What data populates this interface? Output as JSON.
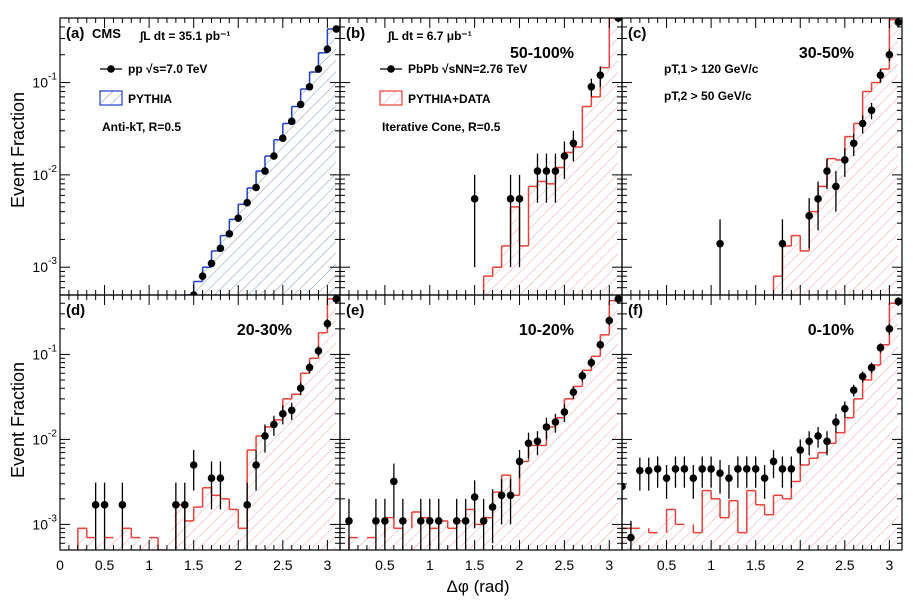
{
  "figure": {
    "y_axis_label": "Event Fraction",
    "x_axis_label": "Δφ (rad)",
    "y_tick_labels": [
      "10",
      "10",
      "10"
    ],
    "y_tick_exponents": [
      "-3",
      "-2",
      "-1"
    ],
    "x_tick_labels_top_row": [],
    "x_tick_labels_bottom": [
      "0",
      "0.5",
      "1",
      "1.5",
      "2",
      "2.5",
      "3"
    ],
    "x_tick_labels_bottom_other": [
      "0.5",
      "1",
      "1.5",
      "2",
      "2.5",
      "3"
    ],
    "colors": {
      "pythia_pp": "#1f3fcc",
      "pythia_data": "#e8403a",
      "hatch_pp": "#7f9ab5",
      "hatch_pbpb": "#f0a0a0",
      "points": "#000000"
    }
  },
  "panels": [
    {
      "label": "(a)",
      "extra": "CMS",
      "lumi": "∫L dt = 35.1 pb⁻¹",
      "legend_points": "pp √s=7.0 TeV",
      "legend_hist": "PYTHIA",
      "legend_algo": "Anti-kT, R=0.5",
      "centrality": ""
    },
    {
      "label": "(b)",
      "extra": "",
      "lumi": "∫L dt = 6.7 μb⁻¹",
      "legend_points": "PbPb √sNN=2.76 TeV",
      "legend_hist": "PYTHIA+DATA",
      "legend_algo": "Iterative Cone, R=0.5",
      "centrality": "50-100%"
    },
    {
      "label": "(c)",
      "extra": "",
      "lumi": "",
      "cut1": "pT,1 > 120 GeV/c",
      "cut2": "pT,2 > 50 GeV/c",
      "centrality": "30-50%"
    },
    {
      "label": "(d)",
      "centrality": "20-30%"
    },
    {
      "label": "(e)",
      "centrality": "10-20%"
    },
    {
      "label": "(f)",
      "centrality": "0-10%"
    }
  ],
  "chart_data": [
    {
      "type": "scatter",
      "panel": "(a)",
      "yscale": "log",
      "ylim": [
        0.0005,
        0.5
      ],
      "xlim": [
        0,
        3.1416
      ],
      "series": [
        {
          "name": "pp √s=7.0 TeV",
          "kind": "points",
          "x": [
            1.5,
            1.6,
            1.7,
            1.8,
            1.9,
            2.0,
            2.1,
            2.2,
            2.3,
            2.4,
            2.5,
            2.6,
            2.7,
            2.8,
            2.9,
            3.0,
            3.1
          ],
          "y": [
            0.0005,
            0.0008,
            0.0011,
            0.0016,
            0.0023,
            0.0034,
            0.005,
            0.0073,
            0.011,
            0.016,
            0.025,
            0.038,
            0.058,
            0.09,
            0.14,
            0.23,
            0.38
          ],
          "yerr": []
        },
        {
          "name": "PYTHIA",
          "kind": "hist",
          "x": [
            1.45,
            1.55,
            1.65,
            1.75,
            1.85,
            1.95,
            2.05,
            2.15,
            2.25,
            2.35,
            2.45,
            2.55,
            2.65,
            2.75,
            2.85,
            2.95,
            3.05
          ],
          "y": [
            0.0005,
            0.0007,
            0.001,
            0.0015,
            0.0022,
            0.0033,
            0.0048,
            0.0072,
            0.011,
            0.016,
            0.024,
            0.036,
            0.055,
            0.085,
            0.13,
            0.21,
            0.38
          ]
        }
      ]
    },
    {
      "type": "scatter",
      "panel": "(b)",
      "yscale": "log",
      "ylim": [
        0.0005,
        0.5
      ],
      "xlim": [
        0,
        3.1416
      ],
      "series": [
        {
          "name": "PbPb √sNN=2.76 TeV",
          "kind": "points",
          "x": [
            1.5,
            1.9,
            2.0,
            2.2,
            2.3,
            2.4,
            2.5,
            2.6,
            2.8,
            2.9,
            3.1
          ],
          "y": [
            0.0055,
            0.0055,
            0.0055,
            0.011,
            0.011,
            0.011,
            0.016,
            0.022,
            0.09,
            0.12,
            0.5
          ],
          "yerr": [
            0.0045,
            0.0045,
            0.0045,
            0.006,
            0.006,
            0.006,
            0.007,
            0.008,
            0.02,
            0.03,
            0.05
          ]
        },
        {
          "name": "PYTHIA+DATA",
          "kind": "hist",
          "x": [
            1.65,
            1.75,
            1.85,
            1.95,
            2.05,
            2.15,
            2.25,
            2.35,
            2.45,
            2.55,
            2.65,
            2.75,
            2.85,
            2.95,
            3.05
          ],
          "y": [
            0.0008,
            0.001,
            0.0017,
            0.0045,
            0.0017,
            0.0075,
            0.0085,
            0.008,
            0.012,
            0.0175,
            0.02,
            0.055,
            0.07,
            0.145,
            0.5
          ]
        }
      ]
    },
    {
      "type": "scatter",
      "panel": "(c)",
      "yscale": "log",
      "ylim": [
        0.0005,
        0.5
      ],
      "xlim": [
        0,
        3.1416
      ],
      "series": [
        {
          "name": "points",
          "kind": "points",
          "x": [
            1.1,
            1.8,
            2.1,
            2.2,
            2.3,
            2.4,
            2.5,
            2.6,
            2.7,
            2.8,
            2.9,
            3.0,
            3.1
          ],
          "y": [
            0.0018,
            0.0018,
            0.0036,
            0.0055,
            0.011,
            0.0075,
            0.0145,
            0.022,
            0.036,
            0.05,
            0.12,
            0.2,
            0.45
          ],
          "yerr": [
            0.0015,
            0.0015,
            0.002,
            0.003,
            0.004,
            0.0035,
            0.005,
            0.006,
            0.008,
            0.01,
            0.02,
            0.03,
            0.05
          ]
        },
        {
          "name": "PYTHIA+DATA",
          "kind": "hist",
          "x": [
            1.75,
            1.85,
            1.95,
            2.05,
            2.15,
            2.25,
            2.35,
            2.45,
            2.55,
            2.65,
            2.75,
            2.85,
            2.95,
            3.05
          ],
          "y": [
            0.0008,
            0.0017,
            0.0022,
            0.0015,
            0.004,
            0.0075,
            0.015,
            0.0145,
            0.026,
            0.036,
            0.08,
            0.1,
            0.14,
            0.48
          ]
        }
      ]
    },
    {
      "type": "scatter",
      "panel": "(d)",
      "yscale": "log",
      "ylim": [
        0.0005,
        0.5
      ],
      "xlim": [
        0,
        3.1416
      ],
      "series": [
        {
          "name": "points",
          "kind": "points",
          "x": [
            0.4,
            0.5,
            0.7,
            1.3,
            1.4,
            1.5,
            1.7,
            1.8,
            2.1,
            2.2,
            2.3,
            2.4,
            2.5,
            2.6,
            2.7,
            2.8,
            2.9,
            3.0,
            3.1
          ],
          "y": [
            0.0017,
            0.0017,
            0.0017,
            0.0017,
            0.0017,
            0.005,
            0.0035,
            0.0035,
            0.0017,
            0.005,
            0.011,
            0.015,
            0.02,
            0.022,
            0.04,
            0.07,
            0.11,
            0.23,
            0.45
          ],
          "yerr": [
            0.0014,
            0.0014,
            0.0014,
            0.0014,
            0.0014,
            0.0025,
            0.002,
            0.002,
            0.0014,
            0.0025,
            0.004,
            0.004,
            0.005,
            0.005,
            0.007,
            0.01,
            0.015,
            0.03,
            0.05
          ]
        },
        {
          "name": "PYTHIA+DATA",
          "kind": "hist",
          "x": [
            0.25,
            0.35,
            0.55,
            0.75,
            0.85,
            1.05,
            1.15,
            1.35,
            1.45,
            1.55,
            1.65,
            1.75,
            1.85,
            1.95,
            2.05,
            2.15,
            2.25,
            2.35,
            2.45,
            2.55,
            2.65,
            2.75,
            2.85,
            2.95,
            3.05
          ],
          "y": [
            0.0009,
            0.0007,
            0.0007,
            0.0009,
            0.0007,
            0.0007,
            0.0005,
            0.0017,
            0.0011,
            0.0016,
            0.0027,
            0.0022,
            0.002,
            0.0015,
            0.0009,
            0.0075,
            0.011,
            0.014,
            0.017,
            0.03,
            0.034,
            0.06,
            0.09,
            0.18,
            0.45
          ]
        }
      ]
    },
    {
      "type": "scatter",
      "panel": "(e)",
      "yscale": "log",
      "ylim": [
        0.0005,
        0.5
      ],
      "xlim": [
        0,
        3.1416
      ],
      "series": [
        {
          "name": "points",
          "kind": "points",
          "x": [
            0.1,
            0.4,
            0.5,
            0.6,
            0.7,
            0.9,
            1.0,
            1.1,
            1.3,
            1.4,
            1.5,
            1.6,
            1.7,
            1.8,
            1.9,
            2.0,
            2.1,
            2.2,
            2.3,
            2.4,
            2.5,
            2.6,
            2.7,
            2.8,
            2.9,
            3.0,
            3.1
          ],
          "y": [
            0.0011,
            0.0011,
            0.0011,
            0.0032,
            0.0011,
            0.0011,
            0.0011,
            0.0011,
            0.0011,
            0.0011,
            0.0021,
            0.0011,
            0.0016,
            0.0022,
            0.0022,
            0.0055,
            0.009,
            0.0095,
            0.014,
            0.016,
            0.021,
            0.036,
            0.056,
            0.08,
            0.13,
            0.25,
            0.45
          ],
          "yerr": [
            0.0009,
            0.0009,
            0.0009,
            0.002,
            0.0009,
            0.0009,
            0.0009,
            0.0009,
            0.0009,
            0.0009,
            0.0012,
            0.0009,
            0.001,
            0.0012,
            0.0012,
            0.002,
            0.003,
            0.003,
            0.004,
            0.004,
            0.005,
            0.006,
            0.008,
            0.01,
            0.015,
            0.03,
            0.05
          ]
        },
        {
          "name": "PYTHIA+DATA",
          "kind": "hist",
          "x": [
            0.15,
            0.35,
            0.55,
            0.65,
            0.85,
            0.95,
            1.05,
            1.15,
            1.25,
            1.35,
            1.45,
            1.55,
            1.65,
            1.75,
            1.85,
            1.95,
            2.05,
            2.15,
            2.25,
            2.35,
            2.45,
            2.55,
            2.65,
            2.75,
            2.85,
            2.95,
            3.05
          ],
          "y": [
            0.0007,
            0.0007,
            0.0012,
            0.0009,
            0.0014,
            0.0012,
            0.0009,
            0.0011,
            0.0009,
            0.0011,
            0.0015,
            0.001,
            0.0012,
            0.0024,
            0.0038,
            0.0022,
            0.0055,
            0.0085,
            0.0085,
            0.014,
            0.018,
            0.03,
            0.042,
            0.065,
            0.095,
            0.17,
            0.43
          ]
        }
      ]
    },
    {
      "type": "scatter",
      "panel": "(f)",
      "yscale": "log",
      "ylim": [
        0.0005,
        0.5
      ],
      "xlim": [
        0,
        3.1416
      ],
      "series": [
        {
          "name": "points",
          "kind": "points",
          "x": [
            0.0,
            0.1,
            0.2,
            0.3,
            0.4,
            0.5,
            0.6,
            0.7,
            0.8,
            0.9,
            1.0,
            1.1,
            1.2,
            1.3,
            1.4,
            1.5,
            1.6,
            1.7,
            1.8,
            1.9,
            2.0,
            2.1,
            2.2,
            2.3,
            2.4,
            2.5,
            2.6,
            2.7,
            2.8,
            2.9,
            3.0,
            3.1
          ],
          "y": [
            0.0028,
            0.0007,
            0.0043,
            0.0043,
            0.0045,
            0.0035,
            0.0045,
            0.0045,
            0.0035,
            0.0045,
            0.0045,
            0.004,
            0.0035,
            0.0045,
            0.0045,
            0.0045,
            0.0035,
            0.0055,
            0.0045,
            0.0045,
            0.0075,
            0.0095,
            0.011,
            0.0095,
            0.016,
            0.023,
            0.038,
            0.055,
            0.07,
            0.12,
            0.2,
            0.42
          ],
          "yerr": [
            0.0015,
            0.0004,
            0.0018,
            0.0018,
            0.0018,
            0.0015,
            0.0018,
            0.0018,
            0.0015,
            0.0018,
            0.0018,
            0.0017,
            0.0015,
            0.0018,
            0.0018,
            0.0018,
            0.0015,
            0.002,
            0.0018,
            0.0018,
            0.0025,
            0.003,
            0.003,
            0.003,
            0.004,
            0.005,
            0.006,
            0.008,
            0.01,
            0.015,
            0.03,
            0.05
          ]
        },
        {
          "name": "PYTHIA+DATA",
          "kind": "hist",
          "x": [
            0.05,
            0.15,
            0.35,
            0.55,
            0.65,
            0.85,
            0.95,
            1.05,
            1.15,
            1.25,
            1.35,
            1.45,
            1.55,
            1.65,
            1.75,
            1.85,
            1.95,
            2.05,
            2.15,
            2.25,
            2.35,
            2.45,
            2.55,
            2.65,
            2.75,
            2.85,
            2.95,
            3.05
          ],
          "y": [
            0.0009,
            0.0009,
            0.0008,
            0.0015,
            0.001,
            0.0008,
            0.0025,
            0.002,
            0.0012,
            0.0019,
            0.0008,
            0.0025,
            0.0017,
            0.0013,
            0.0022,
            0.002,
            0.0032,
            0.005,
            0.006,
            0.007,
            0.009,
            0.012,
            0.018,
            0.03,
            0.05,
            0.075,
            0.13,
            0.4
          ]
        }
      ]
    }
  ]
}
